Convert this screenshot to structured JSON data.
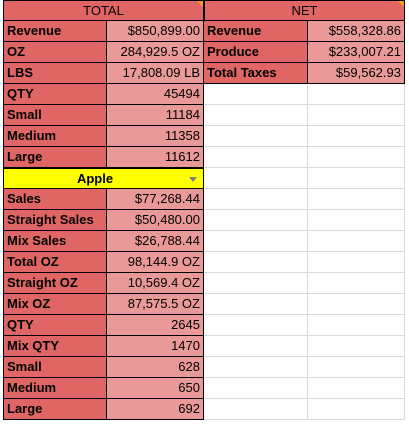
{
  "left_header": "TOTAL",
  "right_header": "NET",
  "total_rows": [
    {
      "label": "Revenue",
      "value": "$850,899.00"
    },
    {
      "label": "OZ",
      "value": "284,929.5 OZ"
    },
    {
      "label": "LBS",
      "value": "17,808.09 LB"
    },
    {
      "label": "QTY",
      "value": "45494"
    },
    {
      "label": "Small",
      "value": "11184"
    },
    {
      "label": "Medium",
      "value": "11358"
    },
    {
      "label": "Large",
      "value": "11612"
    }
  ],
  "selector": {
    "value": "Apple"
  },
  "product_rows": [
    {
      "label": "Sales",
      "value": "$77,268.44"
    },
    {
      "label": "Straight Sales",
      "value": "$50,480.00"
    },
    {
      "label": "Mix Sales",
      "value": "$26,788.44"
    },
    {
      "label": "Total OZ",
      "value": "98,144.9 OZ"
    },
    {
      "label": "Straight OZ",
      "value": "10,569.4 OZ"
    },
    {
      "label": "Mix OZ",
      "value": "87,575.5 OZ"
    },
    {
      "label": "QTY",
      "value": "2645"
    },
    {
      "label": "Mix QTY",
      "value": "1470"
    },
    {
      "label": "Small",
      "value": "628"
    },
    {
      "label": "Medium",
      "value": "650"
    },
    {
      "label": "Large",
      "value": "692"
    }
  ],
  "net_rows": [
    {
      "label": "Revenue",
      "value": "$558,328.86"
    },
    {
      "label": "Produce",
      "value": "$233,007.21"
    },
    {
      "label": "Total Taxes",
      "value": "$59,562.93"
    }
  ],
  "colors": {
    "header": "#e06666",
    "label_cell": "#e06666",
    "value_cell": "#ea9999",
    "selector": "#ffff00"
  }
}
